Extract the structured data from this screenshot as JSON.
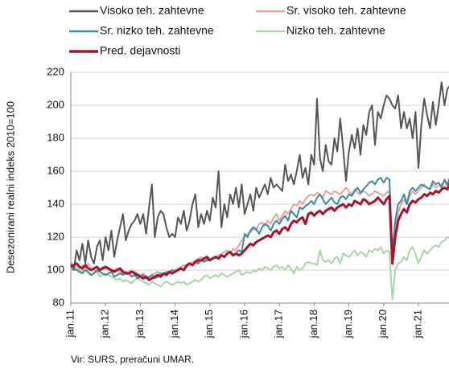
{
  "chart_data": {
    "type": "line",
    "ylabel": "Desezonirani realni indeks 2010=100",
    "source": "Vir: SURS, preračuni UMAR.",
    "ylim": [
      80,
      220
    ],
    "yticks": [
      80,
      100,
      120,
      140,
      160,
      180,
      200,
      220
    ],
    "grid": true,
    "categories": [
      "jan.11",
      null,
      null,
      null,
      null,
      null,
      null,
      null,
      null,
      null,
      null,
      null,
      "jan.12",
      null,
      null,
      null,
      null,
      null,
      null,
      null,
      null,
      null,
      null,
      null,
      "jan.13",
      null,
      null,
      null,
      null,
      null,
      null,
      null,
      null,
      null,
      null,
      null,
      "jan.14",
      null,
      null,
      null,
      null,
      null,
      null,
      null,
      null,
      null,
      null,
      null,
      "jan.15",
      null,
      null,
      null,
      null,
      null,
      null,
      null,
      null,
      null,
      null,
      null,
      "jan.16",
      null,
      null,
      null,
      null,
      null,
      null,
      null,
      null,
      null,
      null,
      null,
      "jan.17",
      null,
      null,
      null,
      null,
      null,
      null,
      null,
      null,
      null,
      null,
      null,
      "jan.18",
      null,
      null,
      null,
      null,
      null,
      null,
      null,
      null,
      null,
      null,
      null,
      "jan.19",
      null,
      null,
      null,
      null,
      null,
      null,
      null,
      null,
      null,
      null,
      null,
      "jan.20",
      null,
      null,
      null,
      null,
      null,
      null,
      null,
      null,
      null,
      null,
      null,
      "jan.21",
      null,
      null,
      null,
      null,
      null,
      null,
      null,
      null,
      null,
      null,
      null
    ],
    "series": [
      {
        "name": "Visoko teh. zahtevne",
        "color": "#555555",
        "width": 2,
        "values": [
          104,
          100,
          112,
          106,
          116,
          104,
          118,
          108,
          104,
          114,
          118,
          106,
          120,
          112,
          124,
          108,
          118,
          126,
          134,
          118,
          124,
          128,
          130,
          134,
          128,
          134,
          122,
          138,
          152,
          120,
          132,
          136,
          134,
          126,
          120,
          122,
          120,
          132,
          128,
          136,
          124,
          130,
          140,
          146,
          126,
          134,
          128,
          136,
          130,
          144,
          138,
          160,
          126,
          140,
          132,
          146,
          140,
          150,
          138,
          152,
          134,
          140,
          146,
          136,
          150,
          144,
          148,
          152,
          146,
          156,
          150,
          152,
          150,
          148,
          164,
          154,
          158,
          152,
          160,
          170,
          156,
          162,
          152,
          170,
          164,
          204,
          168,
          160,
          176,
          166,
          164,
          180,
          172,
          192,
          174,
          154,
          172,
          182,
          174,
          186,
          170,
          188,
          182,
          196,
          200,
          176,
          196,
          192,
          200,
          206,
          204,
          200,
          198,
          206,
          186,
          196,
          186,
          192,
          180,
          196,
          162,
          188,
          204,
          194,
          186,
          202,
          188,
          200,
          214,
          200,
          210,
          212
        ]
      },
      {
        "name": "Sr. visoko teh. zahtevne",
        "color": "#e3a3a3",
        "width": 2,
        "values": [
          105,
          102,
          100,
          101,
          103,
          102,
          104,
          101,
          100,
          99,
          100,
          102,
          101,
          100,
          99,
          100,
          101,
          99,
          98,
          98,
          99,
          100,
          99,
          98,
          97,
          98,
          96,
          95,
          97,
          98,
          99,
          98,
          97,
          98,
          99,
          100,
          100,
          101,
          102,
          103,
          102,
          104,
          105,
          106,
          107,
          108,
          106,
          107,
          106,
          107,
          108,
          109,
          110,
          111,
          112,
          110,
          113,
          112,
          115,
          118,
          120,
          122,
          123,
          125,
          124,
          128,
          129,
          127,
          130,
          128,
          132,
          134,
          130,
          133,
          136,
          134,
          137,
          140,
          139,
          142,
          140,
          143,
          145,
          146,
          145,
          147,
          146,
          144,
          148,
          147,
          146,
          148,
          147,
          146,
          148,
          150,
          148,
          146,
          149,
          147,
          146,
          148,
          147,
          145,
          146,
          148,
          147,
          146,
          145,
          147,
          148,
          115,
          125,
          135,
          140,
          143,
          140,
          145,
          148,
          146,
          148,
          150,
          152,
          150,
          149,
          152,
          150,
          151,
          152,
          154,
          150,
          152
        ]
      },
      {
        "name": "Sr. nizko teh. zahtevne",
        "color": "#3d8b9b",
        "width": 2,
        "values": [
          104,
          101,
          100,
          99,
          98,
          100,
          99,
          97,
          98,
          100,
          99,
          98,
          97,
          98,
          99,
          96,
          97,
          98,
          97,
          99,
          98,
          96,
          97,
          95,
          96,
          97,
          95,
          96,
          97,
          95,
          96,
          98,
          97,
          99,
          98,
          100,
          99,
          100,
          101,
          100,
          102,
          104,
          103,
          105,
          104,
          106,
          105,
          106,
          106,
          107,
          108,
          107,
          109,
          108,
          110,
          111,
          109,
          110,
          112,
          111,
          122,
          120,
          124,
          126,
          125,
          122,
          126,
          128,
          127,
          124,
          128,
          130,
          128,
          131,
          133,
          130,
          136,
          134,
          132,
          138,
          137,
          139,
          140,
          142,
          140,
          144,
          146,
          143,
          140,
          142,
          144,
          141,
          140,
          144,
          145,
          143,
          146,
          145,
          148,
          150,
          147,
          149,
          151,
          153,
          154,
          152,
          155,
          156,
          153,
          156,
          155,
          110,
          130,
          140,
          142,
          146,
          140,
          148,
          150,
          148,
          150,
          152,
          151,
          150,
          149,
          154,
          152,
          153,
          150,
          155,
          152,
          157
        ]
      },
      {
        "name": "Nizko teh. zahtevne",
        "color": "#a9d2ab",
        "width": 2,
        "values": [
          100,
          101,
          102,
          100,
          99,
          101,
          98,
          97,
          98,
          99,
          96,
          97,
          98,
          97,
          96,
          95,
          94,
          95,
          93,
          94,
          93,
          92,
          94,
          95,
          94,
          93,
          92,
          91,
          93,
          92,
          91,
          90,
          92,
          93,
          92,
          91,
          92,
          93,
          92,
          93,
          91,
          92,
          93,
          94,
          93,
          94,
          96,
          97,
          95,
          96,
          97,
          96,
          98,
          97,
          96,
          97,
          98,
          99,
          100,
          97,
          98,
          99,
          98,
          100,
          99,
          101,
          100,
          102,
          101,
          100,
          102,
          103,
          101,
          102,
          100,
          103,
          101,
          98,
          102,
          100,
          101,
          104,
          105,
          104,
          104,
          103,
          112,
          106,
          105,
          106,
          104,
          107,
          108,
          104,
          110,
          109,
          108,
          110,
          112,
          109,
          111,
          110,
          108,
          112,
          111,
          113,
          112,
          114,
          110,
          112,
          111,
          82,
          100,
          104,
          105,
          108,
          106,
          112,
          114,
          110,
          104,
          108,
          112,
          110,
          112,
          114,
          115,
          114,
          117,
          118,
          120,
          119
        ]
      },
      {
        "name": "Pred. dejavnosti",
        "color": "#a3162b",
        "width": 3,
        "values": [
          102,
          103,
          104,
          102,
          101,
          103,
          101,
          100,
          101,
          102,
          100,
          101,
          102,
          101,
          100,
          99,
          100,
          101,
          99,
          98,
          98,
          99,
          98,
          97,
          96,
          95,
          96,
          94,
          95,
          96,
          97,
          96,
          98,
          97,
          99,
          98,
          99,
          100,
          101,
          100,
          103,
          104,
          103,
          105,
          106,
          106,
          107,
          108,
          106,
          107,
          108,
          107,
          109,
          108,
          110,
          111,
          109,
          110,
          109,
          110,
          112,
          114,
          116,
          115,
          117,
          118,
          119,
          120,
          121,
          120,
          123,
          124,
          122,
          125,
          126,
          124,
          128,
          130,
          129,
          131,
          132,
          128,
          134,
          135,
          133,
          135,
          136,
          134,
          136,
          137,
          138,
          136,
          138,
          139,
          140,
          138,
          140,
          139,
          142,
          141,
          140,
          143,
          142,
          140,
          141,
          142,
          144,
          142,
          140,
          143,
          145,
          104,
          120,
          130,
          134,
          137,
          135,
          140,
          142,
          141,
          143,
          144,
          146,
          145,
          147,
          146,
          148,
          147,
          149,
          150,
          149,
          153
        ]
      }
    ]
  }
}
